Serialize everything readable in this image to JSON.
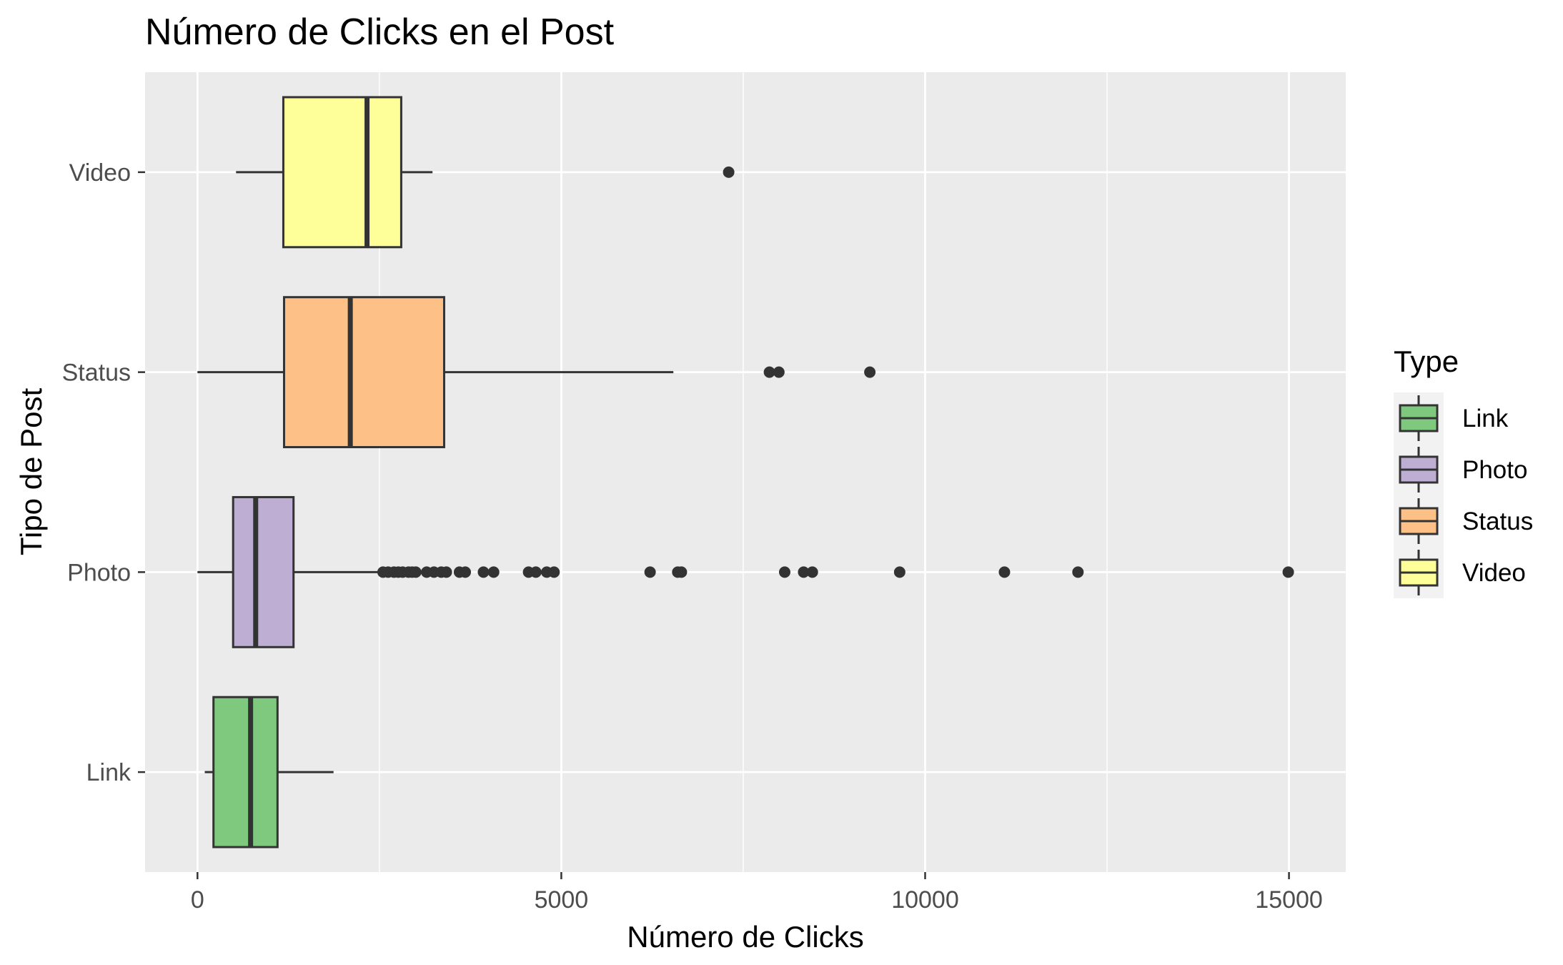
{
  "chart_data": {
    "type": "boxplot",
    "orientation": "horizontal",
    "title": "Número de Clicks en el Post",
    "xlabel": "Número de Clicks",
    "ylabel": "Tipo de Post",
    "xlim": [
      -720,
      15780
    ],
    "x_ticks": [
      0,
      5000,
      10000,
      15000
    ],
    "x_tick_labels": [
      "0",
      "5000",
      "10000",
      "15000"
    ],
    "grid": true,
    "legend": {
      "title": "Type",
      "position": "right",
      "entries": [
        "Link",
        "Photo",
        "Status",
        "Video"
      ]
    },
    "categories": [
      "Link",
      "Photo",
      "Status",
      "Video"
    ],
    "series": [
      {
        "name": "Link",
        "color": "#7fc97f",
        "whisker_low": 100,
        "q1": 220,
        "median": 730,
        "q3": 1100,
        "whisker_high": 1870,
        "outliers": []
      },
      {
        "name": "Photo",
        "color": "#beaed4",
        "whisker_low": 0,
        "q1": 490,
        "median": 800,
        "q3": 1320,
        "whisker_high": 2500,
        "outliers": [
          2550,
          2620,
          2700,
          2760,
          2820,
          2900,
          2950,
          3000,
          3150,
          3250,
          3350,
          3420,
          3600,
          3680,
          3930,
          4070,
          4550,
          4650,
          4800,
          4900,
          6220,
          6600,
          6650,
          8070,
          8330,
          8450,
          9650,
          11090,
          12100,
          14990
        ]
      },
      {
        "name": "Status",
        "color": "#fdc086",
        "whisker_low": 0,
        "q1": 1190,
        "median": 2100,
        "q3": 3390,
        "whisker_high": 6540,
        "outliers": [
          7860,
          7990,
          9240
        ]
      },
      {
        "name": "Video",
        "color": "#ffff99",
        "whisker_low": 530,
        "q1": 1180,
        "median": 2330,
        "q3": 2800,
        "whisker_high": 3230,
        "outliers": [
          7300
        ]
      }
    ]
  }
}
